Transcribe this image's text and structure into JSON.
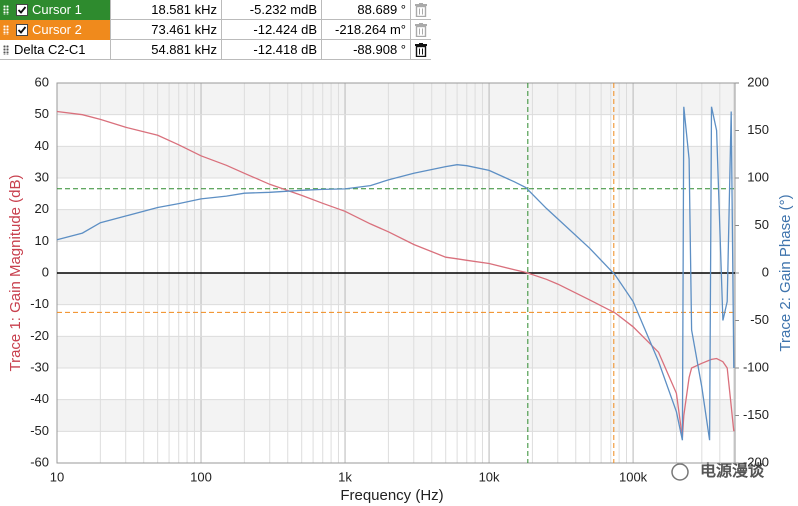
{
  "chart_data": {
    "type": "line",
    "xlabel": "Frequency (Hz)",
    "ylabel": "Trace 1: Gain Magnitude (dB)",
    "y2label": "Trace 2: Gain Phase (°)",
    "xscale": "log",
    "xlim": [
      10,
      510000
    ],
    "xticks": [
      10,
      100,
      {
        "value": 1000,
        "label": "1k"
      },
      {
        "value": 10000,
        "label": "10k"
      },
      {
        "value": 100000,
        "label": "100k"
      }
    ],
    "ylim": [
      -60,
      60
    ],
    "yticks": [
      -60,
      -50,
      -40,
      -30,
      -20,
      -10,
      0,
      10,
      20,
      30,
      40,
      50,
      60
    ],
    "y2lim": [
      -200,
      200
    ],
    "y2ticks": [
      -200,
      -150,
      -100,
      -50,
      0,
      50,
      100,
      150,
      200
    ],
    "grid": true,
    "minor_grid": true,
    "zero_line": true,
    "x": [
      10,
      15,
      20,
      30,
      50,
      70,
      100,
      150,
      200,
      300,
      500,
      700,
      1000,
      1500,
      2000,
      3000,
      5000,
      6000,
      7000,
      10000,
      15000,
      18000,
      25000,
      30000,
      50000,
      75000,
      100000,
      150000,
      200000,
      220000,
      225000,
      245000,
      255000,
      300000,
      340000,
      350000,
      380000,
      420000,
      450000,
      480000,
      500000
    ],
    "series": [
      {
        "name": "Trace 1: Gain Magnitude",
        "color": "#d9707c",
        "values": [
          51,
          50,
          48.5,
          46,
          43.5,
          40.5,
          37,
          34,
          31.5,
          28,
          24.5,
          22,
          19.5,
          15.5,
          13,
          9,
          5,
          4.5,
          4,
          3,
          1,
          0.2,
          -2,
          -3.5,
          -8.5,
          -12.6,
          -17,
          -25,
          -38,
          -52,
          -45,
          -33,
          -30,
          -28.5,
          -27.5,
          -27.3,
          -27,
          -28,
          -30,
          -42,
          -50
        ]
      },
      {
        "name": "Trace 2: Gain Phase",
        "color": "#5d8fc4",
        "axis": "y2",
        "values": [
          35,
          42,
          53,
          60,
          69,
          73,
          78,
          81,
          84,
          85,
          87,
          88,
          88.5,
          92,
          98,
          105,
          112,
          114,
          113,
          108,
          96,
          90,
          68,
          57,
          26,
          -2,
          -30,
          -93,
          -146,
          -176,
          175,
          120,
          -60,
          -120,
          -176,
          175,
          150,
          -50,
          -30,
          170,
          -100
        ]
      }
    ],
    "cursors": [
      {
        "name": "Cursor 1",
        "color": "#2e8b2e",
        "line_axis": "y2",
        "x": {
          "value": 18581,
          "label": "18.581 kHz"
        },
        "gain": {
          "value": -0.005232,
          "label": "-5.232 mdB"
        },
        "phase": {
          "value": 88.689,
          "label": "88.689 °"
        }
      },
      {
        "name": "Cursor 2",
        "color": "#f08a1c",
        "line_axis": "y",
        "x": {
          "value": 73461,
          "label": "73.461 kHz"
        },
        "gain": {
          "value": -12.424,
          "label": "-12.424 dB"
        },
        "phase": {
          "value": -0.218264,
          "label": "-218.264 m°"
        }
      }
    ],
    "delta": {
      "name": "Delta C2-C1",
      "x": {
        "value": 54881,
        "label": "54.881 kHz"
      },
      "gain": {
        "value": -12.418,
        "label": "-12.418 dB"
      },
      "phase": {
        "value": -88.908,
        "label": "-88.908 °"
      }
    },
    "watermark": "电源漫谈"
  }
}
